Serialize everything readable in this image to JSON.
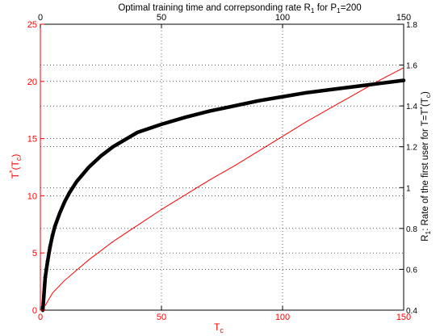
{
  "chart_data": {
    "type": "line",
    "title": {
      "main": "Optimal training time and correpsonding rate  R",
      "sub1": "1",
      "mid": " for P",
      "sub2": "1",
      "end": "=200"
    },
    "xlabel": {
      "main": "T",
      "sub": "c"
    },
    "y_left_label": {
      "main": "T",
      "sup": "*",
      "mid": "(T",
      "sub": "c",
      "end": ")"
    },
    "y_right_label": {
      "main": "R",
      "sub": "1",
      "mid": ": Rate of the first user for T=T",
      "sup": "*",
      "paren_open": "(T",
      "sub2": "c",
      "end": ")"
    },
    "xlim": [
      0,
      150
    ],
    "y_left_lim": [
      0,
      25
    ],
    "y_right_lim": [
      0.4,
      1.8
    ],
    "x_ticks": [
      "0",
      "50",
      "100",
      "150"
    ],
    "x_top_ticks": [
      "0",
      "50",
      "100",
      "150"
    ],
    "y_left_ticks": [
      "0",
      "5",
      "10",
      "15",
      "20",
      "25"
    ],
    "y_right_ticks": [
      "0.4",
      "0.6",
      "0.8",
      "1",
      "1.2",
      "1.4",
      "1.6",
      "1.8"
    ],
    "grid": true,
    "colors": {
      "left_axis": "#ff0000",
      "right_axis": "#000000",
      "grid": "#000000"
    },
    "series": [
      {
        "axis": "left",
        "color": "#ff0000",
        "x": [
          2,
          5,
          10,
          20,
          30,
          40,
          50,
          60,
          70,
          80,
          90,
          100,
          110,
          120,
          130,
          140,
          150
        ],
        "y": [
          0.4,
          1.5,
          2.6,
          4.4,
          6.0,
          7.4,
          8.8,
          10.1,
          11.4,
          12.6,
          13.9,
          15.2,
          16.5,
          17.7,
          18.9,
          20.1,
          21.2
        ]
      },
      {
        "axis": "right",
        "color": "#000000",
        "marker": "+",
        "x": [
          1,
          2,
          3,
          4,
          5,
          6,
          8,
          10,
          12,
          15,
          20,
          25,
          30,
          40,
          50,
          60,
          70,
          80,
          90,
          100,
          110,
          120,
          130,
          140,
          150
        ],
        "y": [
          0.4,
          0.56,
          0.64,
          0.71,
          0.765,
          0.81,
          0.875,
          0.93,
          0.975,
          1.03,
          1.1,
          1.155,
          1.2,
          1.27,
          1.31,
          1.345,
          1.375,
          1.4,
          1.425,
          1.445,
          1.465,
          1.48,
          1.495,
          1.51,
          1.525
        ]
      }
    ]
  }
}
